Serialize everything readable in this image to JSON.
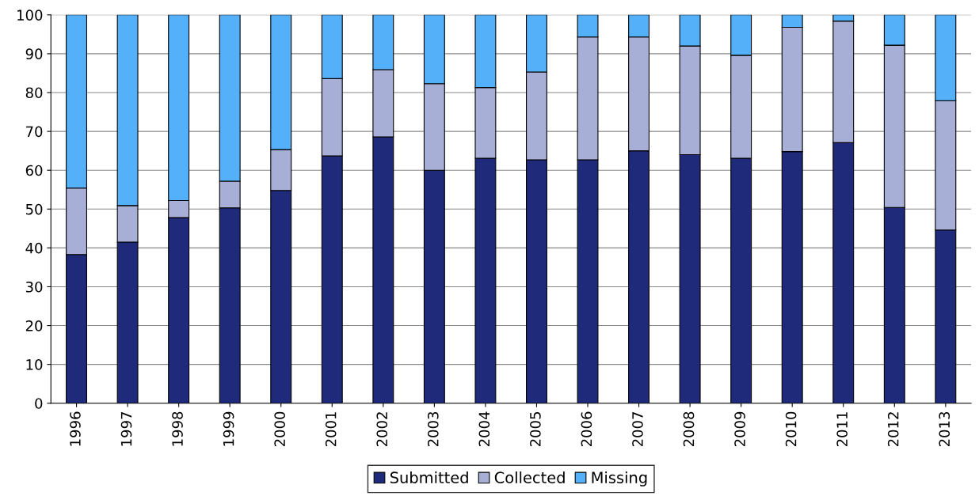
{
  "chart_data": {
    "type": "bar",
    "stacked": true,
    "categories": [
      "1996",
      "1997",
      "1998",
      "1999",
      "2000",
      "2001",
      "2002",
      "2003",
      "2004",
      "2005",
      "2006",
      "2007",
      "2008",
      "2009",
      "2010",
      "2011",
      "2012",
      "2013"
    ],
    "series": [
      {
        "name": "Submitted",
        "color": "#1f2a7a",
        "values": [
          38.3,
          41.5,
          47.8,
          50.3,
          54.8,
          63.7,
          68.6,
          60.0,
          63.1,
          62.7,
          62.7,
          65.0,
          64.0,
          63.1,
          64.8,
          67.1,
          50.4,
          44.6
        ]
      },
      {
        "name": "Collected",
        "color": "#a7afd6",
        "values": [
          17.1,
          9.4,
          4.4,
          6.9,
          10.5,
          19.9,
          17.3,
          22.3,
          18.2,
          22.6,
          31.6,
          29.3,
          28.0,
          26.5,
          32.0,
          31.3,
          41.8,
          33.3
        ]
      },
      {
        "name": "Missing",
        "color": "#55b0fa",
        "values": [
          44.6,
          49.1,
          47.8,
          42.8,
          34.7,
          16.4,
          14.1,
          17.7,
          18.7,
          14.7,
          5.7,
          5.7,
          8.0,
          10.4,
          3.2,
          1.6,
          7.8,
          22.1
        ]
      }
    ],
    "ylim": [
      0,
      100
    ],
    "yticks": [
      0,
      10,
      20,
      30,
      40,
      50,
      60,
      70,
      80,
      90,
      100
    ],
    "grid": "y",
    "legend": "bottom"
  }
}
